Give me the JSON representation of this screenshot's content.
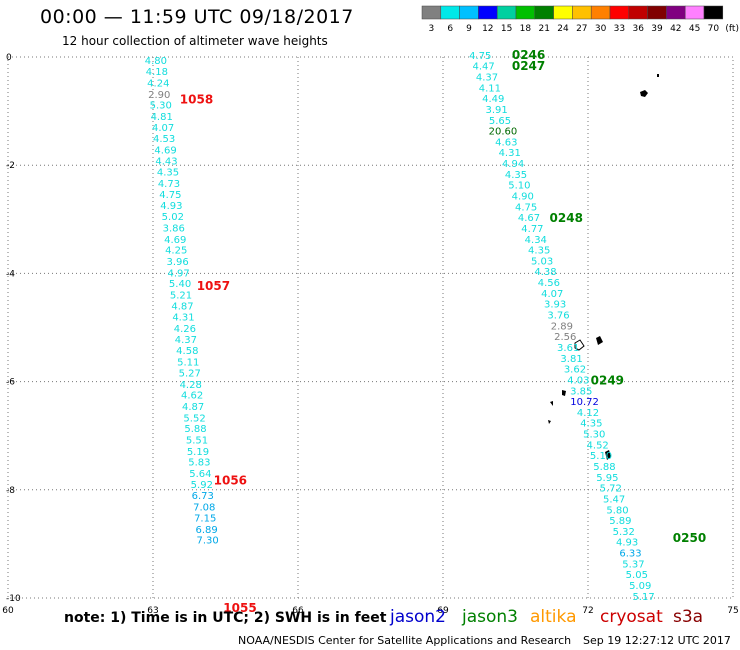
{
  "header": {
    "title": "00:00 — 11:59 UTC 09/18/2017",
    "subtitle": "12 hour collection of altimeter wave heights"
  },
  "legend": {
    "labels": [
      "3",
      "6",
      "9",
      "12",
      "15",
      "18",
      "21",
      "24",
      "27",
      "30",
      "33",
      "36",
      "39",
      "42",
      "45",
      "70",
      "(ft)"
    ],
    "colors": [
      "#808080",
      "#00e8e8",
      "#00c0ff",
      "#0000ff",
      "#00d0a0",
      "#00c000",
      "#008000",
      "#ffff00",
      "#ffc000",
      "#ff8000",
      "#ff0000",
      "#c00000",
      "#800000",
      "#800080",
      "#ff80ff",
      "#000000"
    ]
  },
  "footer": {
    "note": "note: 1) Time is in UTC; 2) SWH is in feet",
    "satellites": [
      {
        "name": "jason2",
        "color": "#0000cc"
      },
      {
        "name": "jason3",
        "color": "#008000"
      },
      {
        "name": "altika",
        "color": "#ff9900"
      },
      {
        "name": "cryosat",
        "color": "#cc0000"
      },
      {
        "name": "s3a",
        "color": "#880000"
      }
    ],
    "credit": "NOAA/NESDIS Center for Satellite Applications and Research",
    "timestamp": "Sep 19 12:27:12 UTC 2017"
  },
  "chart_data": {
    "type": "scatter",
    "xlim": [
      60,
      75
    ],
    "ylim": [
      -10,
      0
    ],
    "xticks": [
      "60",
      "63",
      "66",
      "69",
      "72",
      "75"
    ],
    "yticks": [
      "0",
      "-2",
      "-4",
      "-6",
      "-8",
      "-10"
    ],
    "grid": true,
    "tracks": [
      {
        "points": [
          {
            "x": 63.06,
            "y": -0.06,
            "v": "4.80"
          },
          {
            "x": 63.08,
            "y": -0.26,
            "v": "4.18"
          },
          {
            "x": 63.11,
            "y": -0.47,
            "v": "4.24"
          },
          {
            "x": 63.13,
            "y": -0.68,
            "v": "2.90"
          },
          {
            "x": 63.16,
            "y": -0.88,
            "v": "5.30"
          },
          {
            "x": 63.18,
            "y": -1.09,
            "v": "4.81"
          },
          {
            "x": 63.21,
            "y": -1.29,
            "v": "4.07"
          },
          {
            "x": 63.23,
            "y": -1.5,
            "v": "4.53"
          },
          {
            "x": 63.26,
            "y": -1.71,
            "v": "4.69"
          },
          {
            "x": 63.28,
            "y": -1.91,
            "v": "4.43"
          },
          {
            "x": 63.31,
            "y": -2.12,
            "v": "4.35"
          },
          {
            "x": 63.33,
            "y": -2.33,
            "v": "4.73"
          },
          {
            "x": 63.36,
            "y": -2.53,
            "v": "4.75"
          },
          {
            "x": 63.38,
            "y": -2.74,
            "v": "4.93"
          },
          {
            "x": 63.41,
            "y": -2.94,
            "v": "5.02"
          },
          {
            "x": 63.43,
            "y": -3.15,
            "v": "3.86"
          },
          {
            "x": 63.46,
            "y": -3.36,
            "v": "4.69"
          },
          {
            "x": 63.48,
            "y": -3.56,
            "v": "4.25"
          },
          {
            "x": 63.51,
            "y": -3.77,
            "v": "3.96"
          },
          {
            "x": 63.53,
            "y": -3.98,
            "v": "4.97"
          },
          {
            "x": 63.56,
            "y": -4.18,
            "v": "5.40"
          },
          {
            "x": 63.58,
            "y": -4.39,
            "v": "5.21"
          },
          {
            "x": 63.61,
            "y": -4.59,
            "v": "4.87"
          },
          {
            "x": 63.63,
            "y": -4.8,
            "v": "4.31"
          },
          {
            "x": 63.66,
            "y": -5.01,
            "v": "4.26"
          },
          {
            "x": 63.68,
            "y": -5.21,
            "v": "4.37"
          },
          {
            "x": 63.71,
            "y": -5.42,
            "v": "4.58"
          },
          {
            "x": 63.73,
            "y": -5.63,
            "v": "5.11"
          },
          {
            "x": 63.76,
            "y": -5.83,
            "v": "5.27"
          },
          {
            "x": 63.78,
            "y": -6.04,
            "v": "4.28"
          },
          {
            "x": 63.81,
            "y": -6.24,
            "v": "4.62"
          },
          {
            "x": 63.83,
            "y": -6.45,
            "v": "4.87"
          },
          {
            "x": 63.86,
            "y": -6.66,
            "v": "5.52"
          },
          {
            "x": 63.88,
            "y": -6.86,
            "v": "5.88"
          },
          {
            "x": 63.91,
            "y": -7.07,
            "v": "5.51"
          },
          {
            "x": 63.93,
            "y": -7.28,
            "v": "5.19"
          },
          {
            "x": 63.96,
            "y": -7.48,
            "v": "5.83"
          },
          {
            "x": 63.98,
            "y": -7.69,
            "v": "5.64"
          },
          {
            "x": 64.01,
            "y": -7.89,
            "v": "5.92"
          },
          {
            "x": 64.03,
            "y": -8.1,
            "v": "6.73"
          },
          {
            "x": 64.06,
            "y": -8.31,
            "v": "7.08"
          },
          {
            "x": 64.08,
            "y": -8.51,
            "v": "7.15"
          },
          {
            "x": 64.11,
            "y": -8.72,
            "v": "6.89"
          },
          {
            "x": 64.13,
            "y": -8.92,
            "v": "7.30"
          }
        ],
        "time_labels": [
          {
            "x": 63.9,
            "y": -0.77,
            "t": "1058"
          },
          {
            "x": 64.25,
            "y": -4.21,
            "t": "1057"
          },
          {
            "x": 64.6,
            "y": -7.81,
            "t": "1056"
          },
          {
            "x": 64.8,
            "y": -10.17,
            "t": "1055"
          }
        ]
      },
      {
        "points": [
          {
            "x": 69.77,
            "y": 0.04,
            "v": "4.75"
          },
          {
            "x": 69.84,
            "y": -0.16,
            "v": "4.47"
          },
          {
            "x": 69.91,
            "y": -0.36,
            "v": "4.37"
          },
          {
            "x": 69.97,
            "y": -0.56,
            "v": "4.11"
          },
          {
            "x": 70.04,
            "y": -0.76,
            "v": "4.49"
          },
          {
            "x": 70.11,
            "y": -0.96,
            "v": "3.91"
          },
          {
            "x": 70.18,
            "y": -1.16,
            "v": "5.65"
          },
          {
            "x": 70.24,
            "y": -1.36,
            "v": "20.60"
          },
          {
            "x": 70.31,
            "y": -1.56,
            "v": "4.63"
          },
          {
            "x": 70.38,
            "y": -1.76,
            "v": "4.31"
          },
          {
            "x": 70.45,
            "y": -1.96,
            "v": "4.94"
          },
          {
            "x": 70.51,
            "y": -2.16,
            "v": "4.35"
          },
          {
            "x": 70.58,
            "y": -2.36,
            "v": "5.10"
          },
          {
            "x": 70.65,
            "y": -2.56,
            "v": "4.90"
          },
          {
            "x": 70.72,
            "y": -2.76,
            "v": "4.75"
          },
          {
            "x": 70.78,
            "y": -2.96,
            "v": "4.67"
          },
          {
            "x": 70.85,
            "y": -3.16,
            "v": "4.77"
          },
          {
            "x": 70.92,
            "y": -3.36,
            "v": "4.34"
          },
          {
            "x": 70.99,
            "y": -3.56,
            "v": "4.35"
          },
          {
            "x": 71.05,
            "y": -3.76,
            "v": "5.03"
          },
          {
            "x": 71.12,
            "y": -3.96,
            "v": "4.38"
          },
          {
            "x": 71.19,
            "y": -4.16,
            "v": "4.56"
          },
          {
            "x": 71.26,
            "y": -4.36,
            "v": "4.07"
          },
          {
            "x": 71.32,
            "y": -4.56,
            "v": "3.93"
          },
          {
            "x": 71.39,
            "y": -4.76,
            "v": "3.76"
          },
          {
            "x": 71.46,
            "y": -4.96,
            "v": "2.89"
          },
          {
            "x": 71.53,
            "y": -5.16,
            "v": "2.56"
          },
          {
            "x": 71.59,
            "y": -5.36,
            "v": "3.61"
          },
          {
            "x": 71.66,
            "y": -5.56,
            "v": "3.81"
          },
          {
            "x": 71.73,
            "y": -5.76,
            "v": "3.62"
          },
          {
            "x": 71.8,
            "y": -5.96,
            "v": "4.03"
          },
          {
            "x": 71.86,
            "y": -6.16,
            "v": "3.85"
          },
          {
            "x": 71.93,
            "y": -6.36,
            "v": "10.72"
          },
          {
            "x": 72.0,
            "y": -6.56,
            "v": "4.12"
          },
          {
            "x": 72.07,
            "y": -6.76,
            "v": "4.35"
          },
          {
            "x": 72.13,
            "y": -6.96,
            "v": "5.30"
          },
          {
            "x": 72.2,
            "y": -7.16,
            "v": "4.52"
          },
          {
            "x": 72.27,
            "y": -7.36,
            "v": "5.10"
          },
          {
            "x": 72.34,
            "y": -7.56,
            "v": "5.88"
          },
          {
            "x": 72.4,
            "y": -7.76,
            "v": "5.95"
          },
          {
            "x": 72.47,
            "y": -7.96,
            "v": "5.72"
          },
          {
            "x": 72.54,
            "y": -8.16,
            "v": "5.47"
          },
          {
            "x": 72.61,
            "y": -8.36,
            "v": "5.80"
          },
          {
            "x": 72.67,
            "y": -8.56,
            "v": "5.89"
          },
          {
            "x": 72.74,
            "y": -8.76,
            "v": "5.32"
          },
          {
            "x": 72.81,
            "y": -8.96,
            "v": "4.93"
          },
          {
            "x": 72.88,
            "y": -9.16,
            "v": "6.33"
          },
          {
            "x": 72.94,
            "y": -9.36,
            "v": "5.37"
          },
          {
            "x": 73.01,
            "y": -9.56,
            "v": "5.05"
          },
          {
            "x": 73.08,
            "y": -9.76,
            "v": "5.09"
          },
          {
            "x": 73.15,
            "y": -9.96,
            "v": "5.17"
          }
        ],
        "time_labels": [
          {
            "x": 70.77,
            "y": 0.06,
            "t": "0246"
          },
          {
            "x": 70.77,
            "y": -0.15,
            "t": "0247"
          },
          {
            "x": 71.55,
            "y": -2.96,
            "t": "0248"
          },
          {
            "x": 72.4,
            "y": -5.96,
            "t": "0249"
          },
          {
            "x": 74.1,
            "y": -8.87,
            "t": "0250"
          }
        ]
      }
    ]
  }
}
